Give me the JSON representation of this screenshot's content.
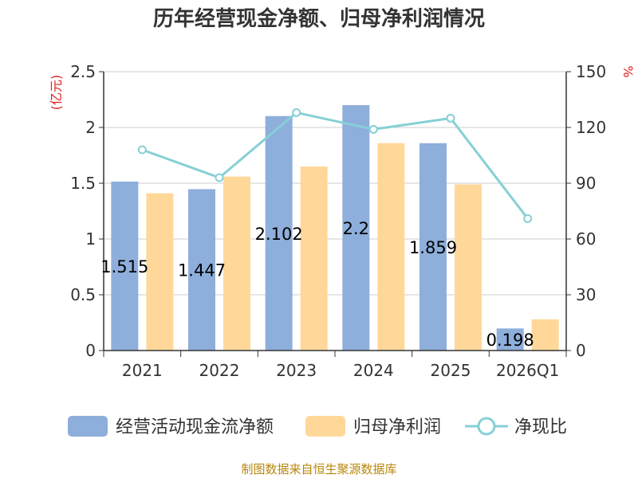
{
  "chart_data": {
    "type": "bar",
    "title": "历年经营现金净额、归母净利润情况",
    "categories": [
      "2021",
      "2022",
      "2023",
      "2024",
      "2025",
      "2026Q1"
    ],
    "series": [
      {
        "name": "经营活动现金流净额",
        "type": "bar",
        "axis": "left",
        "color": "#8eaedb",
        "values": [
          1.515,
          1.447,
          2.102,
          2.2,
          1.859,
          0.198
        ]
      },
      {
        "name": "归母净利润",
        "type": "bar",
        "axis": "left",
        "color": "#ffd899",
        "values": [
          1.41,
          1.56,
          1.65,
          1.86,
          1.49,
          0.28
        ]
      },
      {
        "name": "净现比",
        "type": "line",
        "axis": "right",
        "color": "#86d0d6",
        "values": [
          108,
          93,
          128,
          119,
          125,
          71
        ]
      }
    ],
    "data_labels": [
      "1.515",
      "1.447",
      "2.102",
      "2.2",
      "1.859",
      "0.198"
    ],
    "y_left": {
      "unit": "(亿元)",
      "ylim": [
        0,
        2.5
      ],
      "ticks": [
        "0",
        "0.5",
        "1",
        "1.5",
        "2",
        "2.5"
      ]
    },
    "y_right": {
      "unit": "%",
      "ylim": [
        0,
        150
      ],
      "ticks": [
        "0",
        "30",
        "60",
        "90",
        "120",
        "150"
      ]
    },
    "grid": true,
    "legend_position": "bottom",
    "source": "制图数据来自恒生聚源数据库"
  }
}
